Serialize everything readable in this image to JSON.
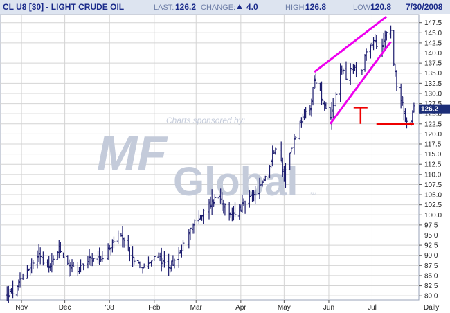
{
  "header": {
    "symbol": "CL U8 [30] - LIGHT CRUDE OIL",
    "last_label": "LAST:",
    "last_value": "126.2",
    "change_label": "CHANGE:",
    "change_value": "4.0",
    "change_direction": "up",
    "high_label": "HIGH:",
    "high_value": "126.8",
    "low_label": "LOW:",
    "low_value": "120.8",
    "date": "7/30/2008"
  },
  "watermark": {
    "sponsor_text": "Charts sponsored by:",
    "brand_mark": "MF",
    "brand_word": "Global",
    "brand_tm": "SM"
  },
  "colors": {
    "header_bg": "#dde4f0",
    "bars": "#1c1c6e",
    "grid": "#d4d4d4",
    "wedge": "#ee00ee",
    "support": "#ee0000",
    "price_tag_bg": "#1c2e78",
    "watermark": "#c4cbda"
  },
  "chart_data": {
    "type": "ohlc",
    "title": "CL U8 [30] - LIGHT CRUDE OIL",
    "ylim": [
      79,
      149.5
    ],
    "y_ticks": [
      "80.0",
      "82.5",
      "85.0",
      "87.5",
      "90.0",
      "92.5",
      "95.0",
      "97.5",
      "100.0",
      "102.5",
      "105.0",
      "107.5",
      "110.0",
      "112.5",
      "115.0",
      "117.5",
      "120.0",
      "122.5",
      "125.0",
      "127.5",
      "130.0",
      "132.5",
      "135.0",
      "137.5",
      "140.0",
      "142.5",
      "145.0",
      "147.5"
    ],
    "x_ticks": [
      "Nov",
      "Dec",
      "'08",
      "Feb",
      "Mar",
      "Apr",
      "May",
      "Jun",
      "Jul",
      "Daily"
    ],
    "last_price": "126.2",
    "keypoints": [
      {
        "date": "2007-10-22",
        "close": 80.5
      },
      {
        "date": "2007-10-28",
        "close": 81.0
      },
      {
        "date": "2007-11-01",
        "close": 84.5
      },
      {
        "date": "2007-11-08",
        "close": 88.0
      },
      {
        "date": "2007-11-13",
        "close": 90.0
      },
      {
        "date": "2007-11-20",
        "close": 87.0
      },
      {
        "date": "2007-11-27",
        "close": 91.5
      },
      {
        "date": "2007-12-03",
        "close": 88.0
      },
      {
        "date": "2007-12-10",
        "close": 86.0
      },
      {
        "date": "2007-12-17",
        "close": 89.0
      },
      {
        "date": "2007-12-26",
        "close": 89.5
      },
      {
        "date": "2008-01-02",
        "close": 92.0
      },
      {
        "date": "2008-01-07",
        "close": 95.5
      },
      {
        "date": "2008-01-14",
        "close": 91.0
      },
      {
        "date": "2008-01-22",
        "close": 87.0
      },
      {
        "date": "2008-01-28",
        "close": 88.5
      },
      {
        "date": "2008-02-05",
        "close": 89.5
      },
      {
        "date": "2008-02-11",
        "close": 87.0
      },
      {
        "date": "2008-02-19",
        "close": 91.0
      },
      {
        "date": "2008-02-27",
        "close": 97.5
      },
      {
        "date": "2008-03-03",
        "close": 99.0
      },
      {
        "date": "2008-03-10",
        "close": 102.5
      },
      {
        "date": "2008-03-17",
        "close": 105.0
      },
      {
        "date": "2008-03-24",
        "close": 99.5
      },
      {
        "date": "2008-03-31",
        "close": 101.5
      },
      {
        "date": "2008-04-07",
        "close": 104.0
      },
      {
        "date": "2008-04-14",
        "close": 106.5
      },
      {
        "date": "2008-04-21",
        "close": 112.0
      },
      {
        "date": "2008-04-25",
        "close": 117.0
      },
      {
        "date": "2008-04-29",
        "close": 113.0
      },
      {
        "date": "2008-05-01",
        "close": 109.0
      },
      {
        "date": "2008-05-05",
        "close": 116.0
      },
      {
        "date": "2008-05-12",
        "close": 122.5
      },
      {
        "date": "2008-05-19",
        "close": 126.5
      },
      {
        "date": "2008-05-22",
        "close": 133.0
      },
      {
        "date": "2008-05-26",
        "close": 130.0
      },
      {
        "date": "2008-05-29",
        "close": 127.5
      },
      {
        "date": "2008-06-02",
        "close": 124.5
      },
      {
        "date": "2008-06-05",
        "close": 128.0
      },
      {
        "date": "2008-06-09",
        "close": 136.5
      },
      {
        "date": "2008-06-13",
        "close": 134.0
      },
      {
        "date": "2008-06-18",
        "close": 136.5
      },
      {
        "date": "2008-06-23",
        "close": 134.5
      },
      {
        "date": "2008-06-27",
        "close": 140.0
      },
      {
        "date": "2008-07-02",
        "close": 143.0
      },
      {
        "date": "2008-07-07",
        "close": 141.0
      },
      {
        "date": "2008-07-11",
        "close": 145.5
      },
      {
        "date": "2008-07-14",
        "close": 145.0
      },
      {
        "date": "2008-07-16",
        "close": 138.0
      },
      {
        "date": "2008-07-18",
        "close": 132.0
      },
      {
        "date": "2008-07-22",
        "close": 127.0
      },
      {
        "date": "2008-07-25",
        "close": 122.5
      },
      {
        "date": "2008-07-28",
        "close": 123.0
      },
      {
        "date": "2008-07-30",
        "close": 126.2
      }
    ],
    "annotations": {
      "wedge_upper": [
        {
          "date": "2008-05-22",
          "price": 135.3
        },
        {
          "date": "2008-07-11",
          "price": 149.0
        }
      ],
      "wedge_lower": [
        {
          "date": "2008-06-02",
          "price": 122.5
        },
        {
          "date": "2008-07-14",
          "price": 142.8
        }
      ],
      "support_line": [
        {
          "date": "2008-07-04",
          "price": 122.5
        },
        {
          "date": "2008-07-30",
          "price": 122.5
        }
      ],
      "t_marker": {
        "date": "2008-06-23",
        "top": 126.5,
        "bottom": 122.5
      }
    }
  }
}
